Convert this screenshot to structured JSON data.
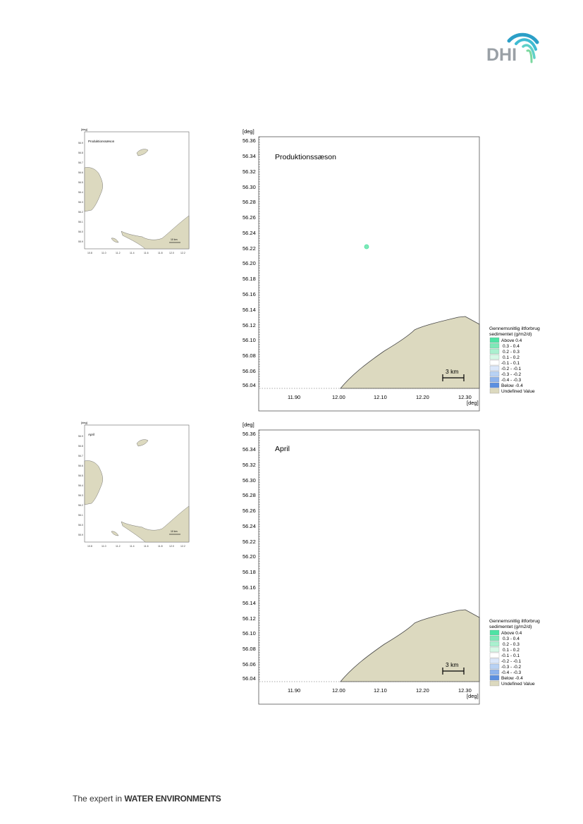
{
  "logo": {
    "text": "DHI"
  },
  "footer": {
    "prefix": "The expert in ",
    "bold": "WATER ENVIRONMENTS"
  },
  "colors": {
    "land": "#dcd9bf",
    "legend_above": "#4ee3a4",
    "legend_below": "#5b8fe0"
  },
  "maps": [
    {
      "title": "Produktionssæson",
      "deg_label": "[deg]",
      "y_ticks": [
        "56.36",
        "56.34",
        "56.32",
        "56.30",
        "56.28",
        "56.26",
        "56.24",
        "56.22",
        "56.20",
        "56.18",
        "56.16",
        "56.14",
        "56.12",
        "56.10",
        "56.08",
        "56.06",
        "56.04"
      ],
      "x_ticks": [
        "11.90",
        "12.00",
        "12.10",
        "12.20",
        "12.30"
      ],
      "x_unit": "[deg]",
      "scale_bar": "3 km",
      "legend": {
        "title_line1": "Gennemsnitlig iltforbrug",
        "title_line2": "sedimentet (g/m2/d)",
        "items": [
          "Above  0.4",
          "0.3 -  0.4",
          "0.2 -  0.3",
          "0.1 -  0.2",
          "-0.1 -  0.1",
          "-0.2 - -0.1",
          "-0.3 - -0.2",
          "-0.4 - -0.3",
          "Below -0.4",
          "Undefined Value"
        ]
      },
      "thumb": {
        "title": "Produktionssæson",
        "deg_label": "[deg]",
        "y_ticks": [
          "56.9",
          "56.8",
          "56.7",
          "56.6",
          "56.5",
          "56.4",
          "56.3",
          "56.2",
          "56.1",
          "56.0",
          "55.9"
        ],
        "x_ticks": [
          "10.8",
          "11.0",
          "11.2",
          "11.4",
          "11.6",
          "11.8",
          "12.0",
          "12.2"
        ],
        "scale_bar": "10 km"
      }
    },
    {
      "title": "April",
      "deg_label": "[deg]",
      "y_ticks": [
        "56.36",
        "56.34",
        "56.32",
        "56.30",
        "56.28",
        "56.26",
        "56.24",
        "56.22",
        "56.20",
        "56.18",
        "56.16",
        "56.14",
        "56.12",
        "56.10",
        "56.08",
        "56.06",
        "56.04"
      ],
      "x_ticks": [
        "11.90",
        "12.00",
        "12.10",
        "12.20",
        "12.30"
      ],
      "x_unit": "[deg]",
      "scale_bar": "3 km",
      "legend": {
        "title_line1": "Gennemsnitlig iltforbrug",
        "title_line2": "sedimentet (g/m2/d)",
        "items": [
          "Above  0.4",
          "0.3 -  0.4",
          "0.2 -  0.3",
          "0.1 -  0.2",
          "-0.1 -  0.1",
          "-0.2 - -0.1",
          "-0.3 - -0.2",
          "-0.4 - -0.3",
          "Below -0.4",
          "Undefined Value"
        ]
      },
      "thumb": {
        "title": "April",
        "deg_label": "[deg]",
        "y_ticks": [
          "56.9",
          "56.8",
          "56.7",
          "56.6",
          "56.5",
          "56.4",
          "56.3",
          "56.2",
          "56.1",
          "56.0",
          "55.9"
        ],
        "x_ticks": [
          "10.8",
          "11.0",
          "11.2",
          "11.4",
          "11.6",
          "11.8",
          "12.0",
          "12.2"
        ],
        "scale_bar": "10 km"
      }
    }
  ]
}
